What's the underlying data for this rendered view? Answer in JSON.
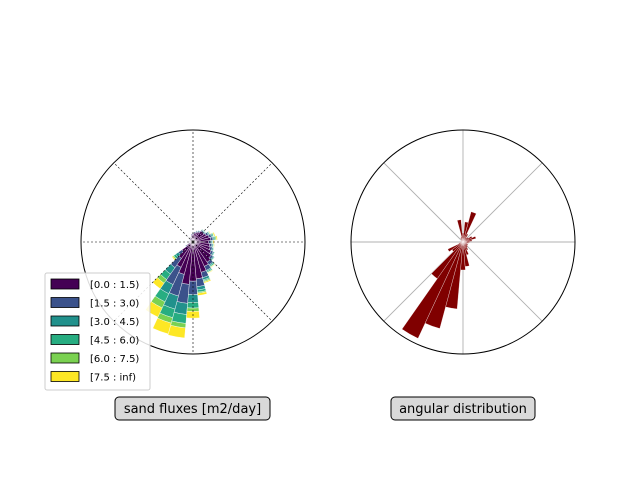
{
  "chart_data": [
    {
      "type": "polar-bar",
      "subtype": "wind-rose-stacked",
      "label": "sand fluxes [m2/day]",
      "grid": "dashed",
      "legend_position": "lower-left",
      "bins": [
        {
          "label": "[0.0 : 1.5)",
          "color": "#440154"
        },
        {
          "label": "[1.5 : 3.0)",
          "color": "#3b528b"
        },
        {
          "label": "[3.0 : 4.5)",
          "color": "#21918c"
        },
        {
          "label": "[4.5 : 6.0)",
          "color": "#27ad81"
        },
        {
          "label": "[6.0 : 7.5)",
          "color": "#7ad151"
        },
        {
          "label": "[7.5 : inf)",
          "color": "#fde725"
        }
      ],
      "r_max": 100,
      "sectors": [
        {
          "angle": 0,
          "values": [
            14,
            2,
            1,
            0.5,
            0.5,
            1
          ]
        },
        {
          "angle": 10,
          "values": [
            16,
            2,
            1,
            1,
            1,
            1
          ]
        },
        {
          "angle": 20,
          "values": [
            15,
            2,
            1,
            1,
            0.5,
            1
          ]
        },
        {
          "angle": 30,
          "values": [
            13,
            2,
            1,
            0.5,
            0.5,
            0.5
          ]
        },
        {
          "angle": 40,
          "values": [
            12,
            1,
            0.5,
            0.5,
            0,
            0
          ]
        },
        {
          "angle": 50,
          "values": [
            12,
            1,
            0.5,
            0.5,
            0,
            0
          ]
        },
        {
          "angle": 60,
          "values": [
            10,
            1,
            0.5,
            0,
            0,
            0
          ]
        },
        {
          "angle": 70,
          "values": [
            9,
            1,
            0.5,
            0,
            0,
            0
          ]
        },
        {
          "angle": 80,
          "values": [
            8,
            1,
            0,
            0,
            0,
            0
          ]
        },
        {
          "angle": 90,
          "values": [
            7,
            1,
            0,
            0,
            0,
            0
          ]
        },
        {
          "angle": 100,
          "values": [
            6,
            1,
            0,
            0,
            0,
            0
          ]
        },
        {
          "angle": 110,
          "values": [
            4,
            0.5,
            0,
            0,
            0,
            0
          ]
        },
        {
          "angle": 120,
          "values": [
            4,
            0.5,
            0,
            0,
            0,
            0
          ]
        },
        {
          "angle": 130,
          "values": [
            3,
            0.5,
            0,
            0,
            0,
            0
          ]
        },
        {
          "angle": 140,
          "values": [
            3,
            0.5,
            0,
            0,
            0,
            0
          ]
        },
        {
          "angle": 150,
          "values": [
            3,
            0,
            0,
            0,
            0,
            0
          ]
        },
        {
          "angle": 160,
          "values": [
            3,
            0,
            0,
            0,
            0,
            0
          ]
        },
        {
          "angle": 170,
          "values": [
            3,
            0,
            0,
            0,
            0,
            0
          ]
        },
        {
          "angle": 180,
          "values": [
            3,
            0,
            0,
            0,
            0,
            0
          ]
        },
        {
          "angle": 190,
          "values": [
            3,
            0,
            0,
            0,
            0,
            0
          ]
        },
        {
          "angle": 200,
          "values": [
            4,
            0.5,
            0,
            0,
            0,
            0
          ]
        },
        {
          "angle": 210,
          "values": [
            6,
            1,
            0.5,
            0,
            0,
            0
          ]
        },
        {
          "angle": 220,
          "values": [
            12,
            4,
            3,
            2,
            1,
            1
          ]
        },
        {
          "angle": 230,
          "values": [
            18,
            10,
            7,
            6,
            4,
            6
          ]
        },
        {
          "angle": 240,
          "values": [
            25,
            17,
            9,
            8,
            6,
            9
          ]
        },
        {
          "angle": 250,
          "values": [
            30,
            20,
            12,
            8,
            5,
            10
          ]
        },
        {
          "angle": 260,
          "values": [
            38,
            17,
            10,
            8,
            4,
            9
          ]
        },
        {
          "angle": 270,
          "values": [
            35,
            12,
            7,
            5,
            3,
            6
          ]
        },
        {
          "angle": 280,
          "values": [
            33,
            7,
            3,
            2,
            1,
            2
          ]
        },
        {
          "angle": 290,
          "values": [
            28,
            5,
            2,
            1,
            1,
            1
          ]
        },
        {
          "angle": 300,
          "values": [
            24,
            4,
            1,
            1,
            0.5,
            0.5
          ]
        },
        {
          "angle": 310,
          "values": [
            22,
            3,
            1,
            1,
            0.5,
            0.5
          ]
        },
        {
          "angle": 320,
          "values": [
            20,
            2,
            1,
            0.5,
            0,
            0
          ]
        },
        {
          "angle": 330,
          "values": [
            18,
            2,
            1,
            0.5,
            0,
            0
          ]
        },
        {
          "angle": 340,
          "values": [
            16,
            2,
            1,
            0.5,
            0,
            0
          ]
        },
        {
          "angle": 350,
          "values": [
            15,
            2,
            1,
            0.5,
            0.5,
            0.5
          ]
        }
      ]
    },
    {
      "type": "polar-bar",
      "subtype": "angular-histogram",
      "label": "angular distribution",
      "grid": "solid",
      "color": "#800000",
      "r_max": 100,
      "sectors": [
        {
          "angle": 0,
          "value": 6
        },
        {
          "angle": 10,
          "value": 8
        },
        {
          "angle": 20,
          "value": 12
        },
        {
          "angle": 30,
          "value": 9
        },
        {
          "angle": 40,
          "value": 6
        },
        {
          "angle": 50,
          "value": 5
        },
        {
          "angle": 60,
          "value": 8
        },
        {
          "angle": 70,
          "value": 28
        },
        {
          "angle": 80,
          "value": 18
        },
        {
          "angle": 90,
          "value": 8
        },
        {
          "angle": 100,
          "value": 20
        },
        {
          "angle": 110,
          "value": 5
        },
        {
          "angle": 120,
          "value": 4
        },
        {
          "angle": 130,
          "value": 3
        },
        {
          "angle": 140,
          "value": 2
        },
        {
          "angle": 150,
          "value": 2
        },
        {
          "angle": 160,
          "value": 2
        },
        {
          "angle": 170,
          "value": 2
        },
        {
          "angle": 180,
          "value": 2
        },
        {
          "angle": 190,
          "value": 3
        },
        {
          "angle": 200,
          "value": 4
        },
        {
          "angle": 210,
          "value": 15
        },
        {
          "angle": 220,
          "value": 12
        },
        {
          "angle": 230,
          "value": 40
        },
        {
          "angle": 240,
          "value": 95
        },
        {
          "angle": 250,
          "value": 80
        },
        {
          "angle": 260,
          "value": 60
        },
        {
          "angle": 270,
          "value": 25
        },
        {
          "angle": 280,
          "value": 22
        },
        {
          "angle": 290,
          "value": 12
        },
        {
          "angle": 300,
          "value": 8
        },
        {
          "angle": 310,
          "value": 6
        },
        {
          "angle": 320,
          "value": 5
        },
        {
          "angle": 330,
          "value": 5
        },
        {
          "angle": 340,
          "value": 4
        },
        {
          "angle": 350,
          "value": 5
        }
      ]
    }
  ]
}
